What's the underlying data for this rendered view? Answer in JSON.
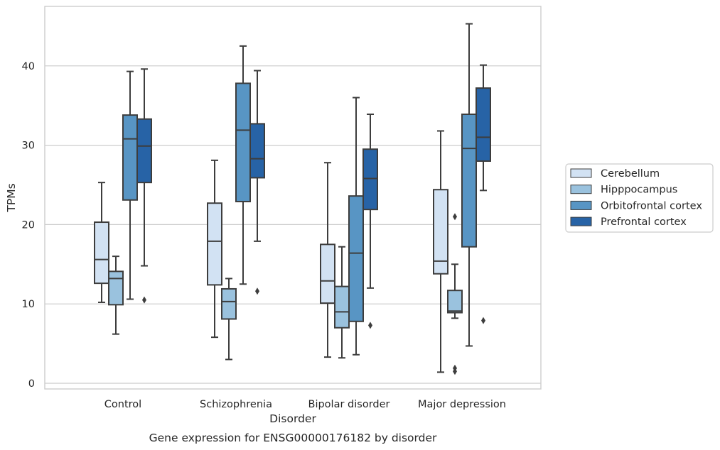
{
  "chart_data": {
    "type": "box",
    "title": "Gene expression for ENSG00000176182 by disorder",
    "xlabel": "Disorder",
    "ylabel": "TPMs",
    "ylim": [
      -0.6,
      47.5
    ],
    "yticks": [
      0,
      10,
      20,
      30,
      40
    ],
    "grid": "horizontal",
    "legend_position": "right",
    "categories": [
      "Control",
      "Schizophrenia",
      "Bipolar disorder",
      "Major depression"
    ],
    "series": [
      {
        "name": "Cerebellum",
        "color": "#d2e2f3",
        "boxes": [
          {
            "whisker_low": 10.2,
            "q1": 12.6,
            "median": 15.6,
            "q3": 20.3,
            "whisker_high": 25.3,
            "outliers": []
          },
          {
            "whisker_low": 5.8,
            "q1": 12.4,
            "median": 17.9,
            "q3": 22.7,
            "whisker_high": 28.1,
            "outliers": []
          },
          {
            "whisker_low": 3.3,
            "q1": 10.1,
            "median": 12.9,
            "q3": 17.5,
            "whisker_high": 27.8,
            "outliers": []
          },
          {
            "whisker_low": 1.4,
            "q1": 13.8,
            "median": 15.4,
            "q3": 24.4,
            "whisker_high": 31.8,
            "outliers": []
          }
        ]
      },
      {
        "name": "Hipppocampus",
        "color": "#9ac2de",
        "boxes": [
          {
            "whisker_low": 6.2,
            "q1": 9.9,
            "median": 13.2,
            "q3": 14.1,
            "whisker_high": 16.0,
            "outliers": []
          },
          {
            "whisker_low": 3.0,
            "q1": 8.1,
            "median": 10.3,
            "q3": 11.9,
            "whisker_high": 13.2,
            "outliers": []
          },
          {
            "whisker_low": 3.2,
            "q1": 7.0,
            "median": 9.0,
            "q3": 12.2,
            "whisker_high": 17.2,
            "outliers": []
          },
          {
            "whisker_low": 8.2,
            "q1": 8.9,
            "median": 9.1,
            "q3": 11.7,
            "whisker_high": 15.0,
            "outliers": [
              21.0,
              1.9,
              1.5
            ]
          }
        ]
      },
      {
        "name": "Orbitofrontal cortex",
        "color": "#5895c4",
        "boxes": [
          {
            "whisker_low": 10.6,
            "q1": 23.1,
            "median": 30.8,
            "q3": 33.8,
            "whisker_high": 39.3,
            "outliers": []
          },
          {
            "whisker_low": 12.5,
            "q1": 22.9,
            "median": 31.9,
            "q3": 37.8,
            "whisker_high": 42.5,
            "outliers": []
          },
          {
            "whisker_low": 3.6,
            "q1": 7.8,
            "median": 16.4,
            "q3": 23.6,
            "whisker_high": 36.0,
            "outliers": []
          },
          {
            "whisker_low": 4.7,
            "q1": 17.2,
            "median": 29.6,
            "q3": 33.9,
            "whisker_high": 45.3,
            "outliers": []
          }
        ]
      },
      {
        "name": "Prefrontal cortex",
        "color": "#2763a6",
        "boxes": [
          {
            "whisker_low": 14.8,
            "q1": 25.3,
            "median": 29.9,
            "q3": 33.3,
            "whisker_high": 39.6,
            "outliers": [
              10.5
            ]
          },
          {
            "whisker_low": 17.9,
            "q1": 25.9,
            "median": 28.3,
            "q3": 32.7,
            "whisker_high": 39.4,
            "outliers": [
              11.6
            ]
          },
          {
            "whisker_low": 12.0,
            "q1": 21.9,
            "median": 25.8,
            "q3": 29.5,
            "whisker_high": 33.9,
            "outliers": [
              7.3
            ]
          },
          {
            "whisker_low": 24.3,
            "q1": 28.0,
            "median": 31.0,
            "q3": 37.2,
            "whisker_high": 40.1,
            "outliers": [
              7.9
            ]
          }
        ]
      }
    ]
  }
}
